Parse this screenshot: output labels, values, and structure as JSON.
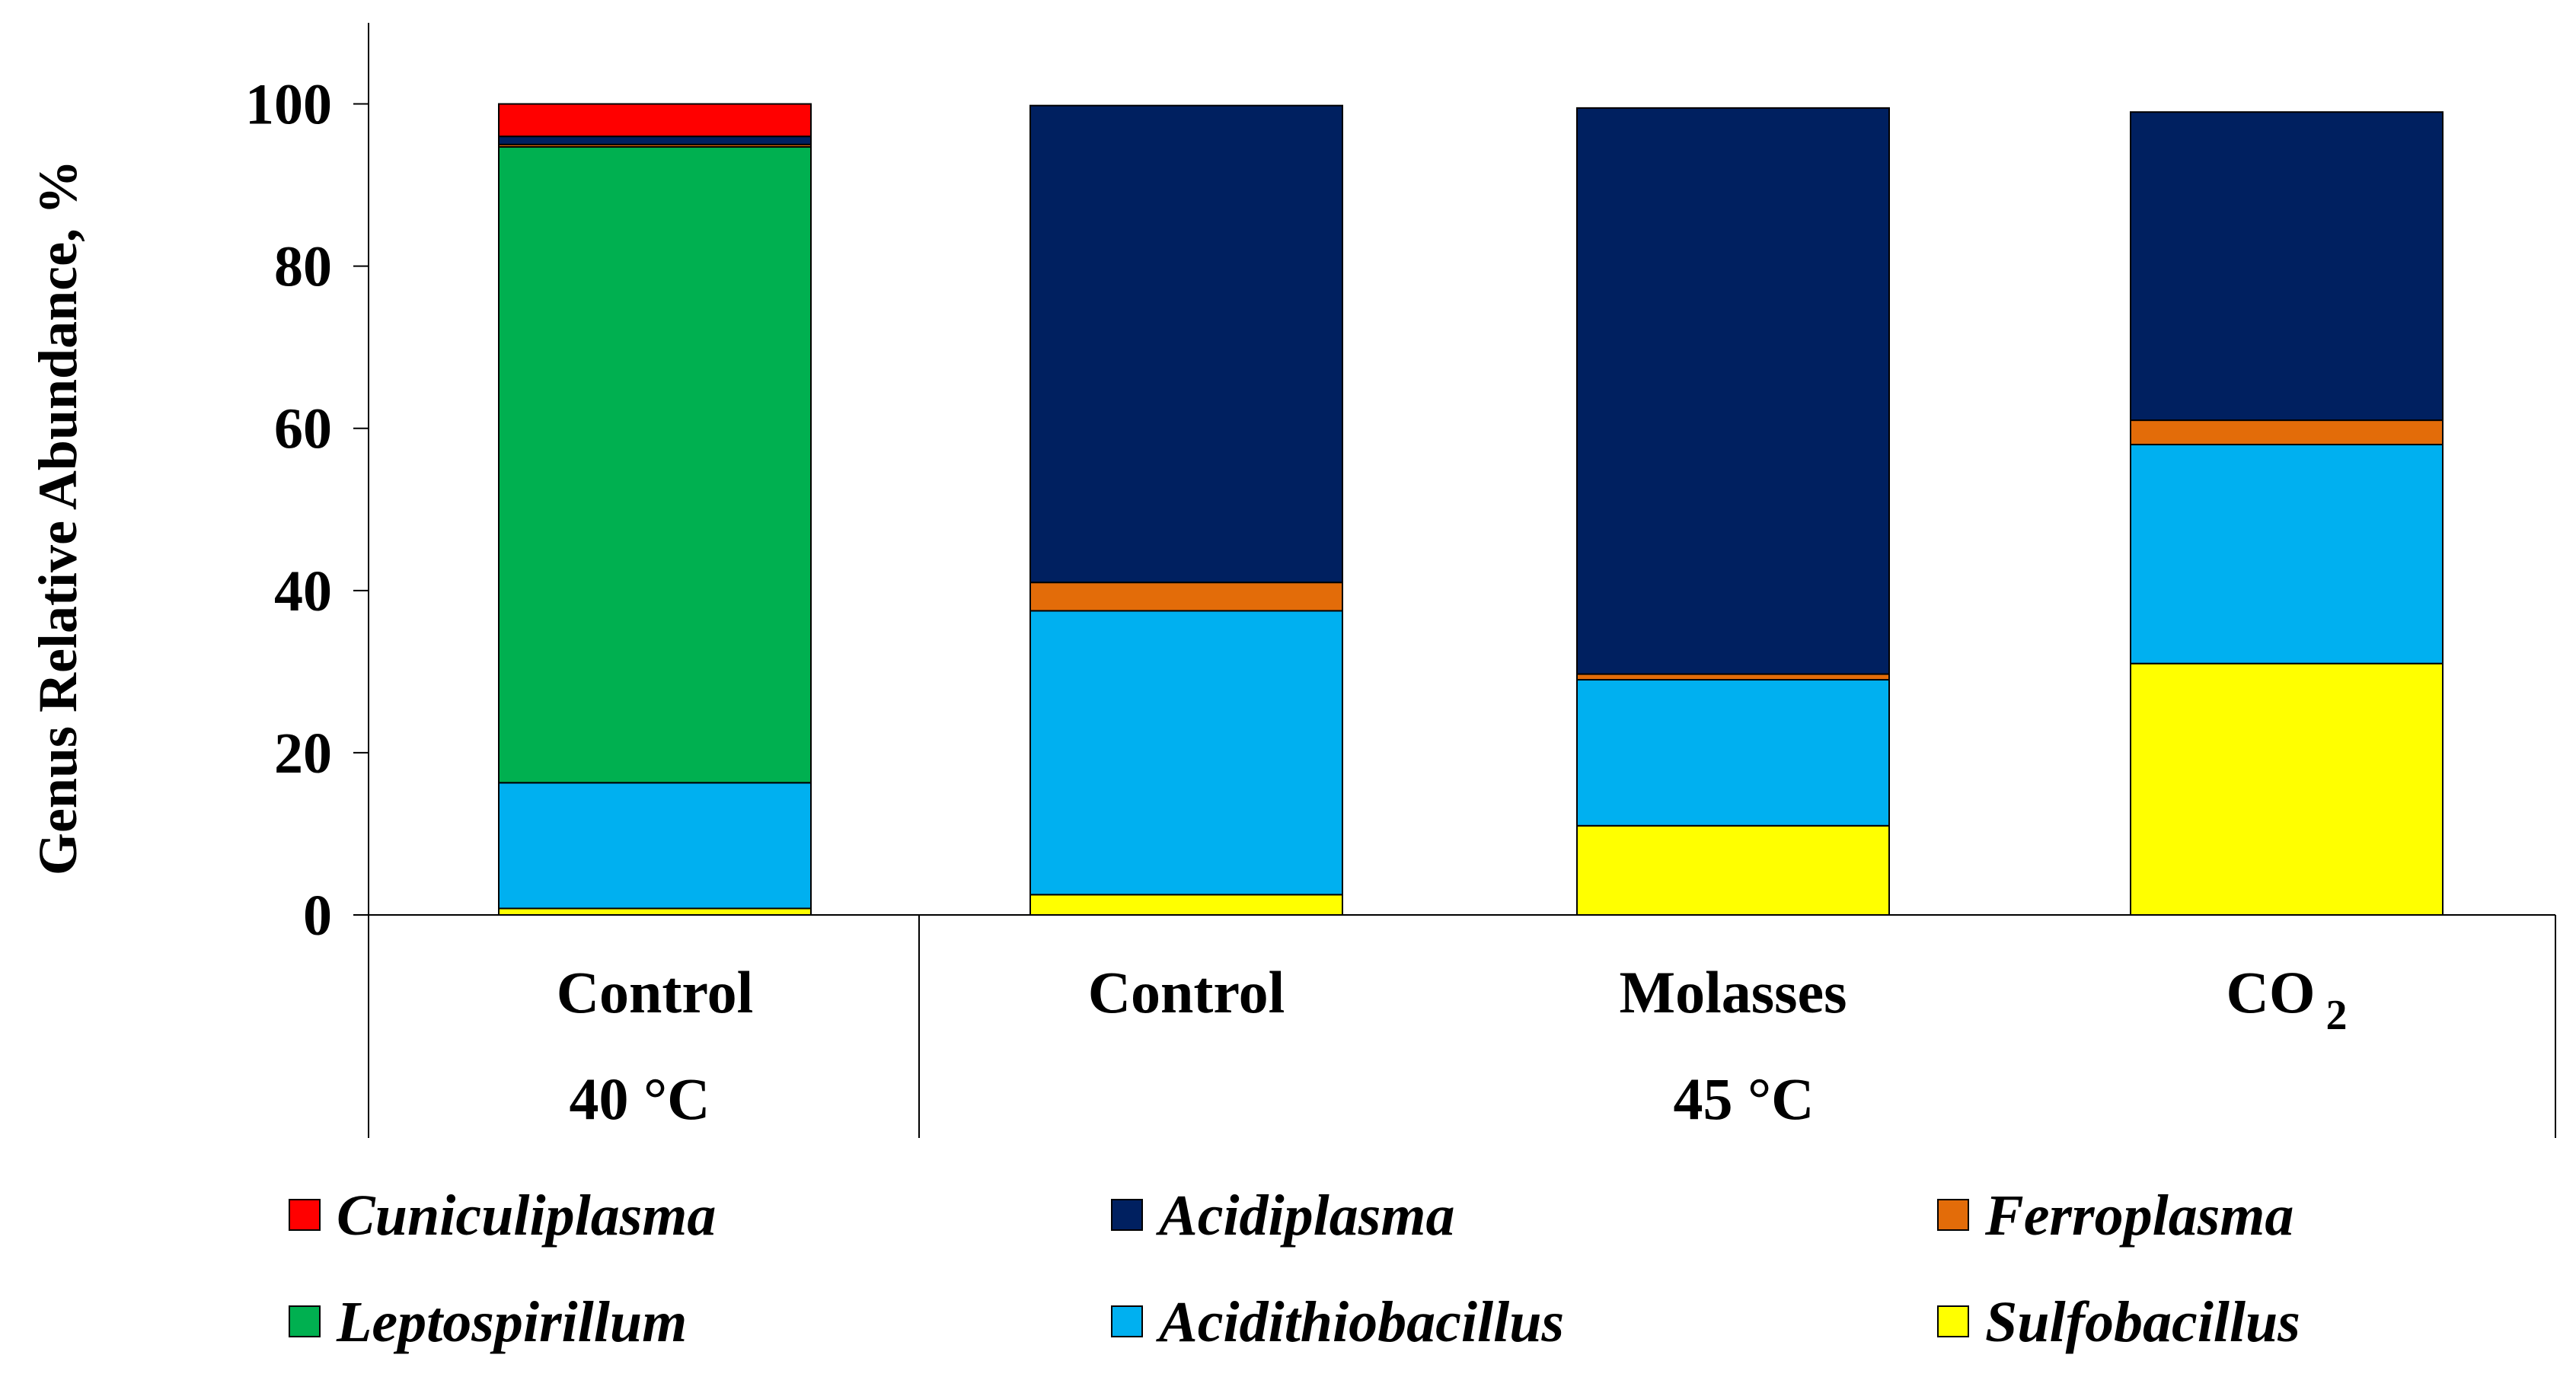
{
  "chart_data": {
    "type": "bar",
    "stacked": true,
    "title": "",
    "ylabel": "Genus Relative Abundance, %",
    "ylim": [
      0,
      110
    ],
    "yticks": [
      "0",
      "20",
      "40",
      "60",
      "80",
      "100"
    ],
    "categories": [
      {
        "label": "Control",
        "sub": ""
      },
      {
        "label": "Control",
        "sub": ""
      },
      {
        "label": "Molasses",
        "sub": ""
      },
      {
        "label": "CO",
        "sub": "2"
      }
    ],
    "groups": [
      {
        "label": "40 °C",
        "span": [
          0,
          0
        ]
      },
      {
        "label": "45 °C",
        "span": [
          1,
          3
        ]
      }
    ],
    "series": [
      {
        "name": "Sulfobacillus",
        "color": "#FFFF00",
        "values": [
          0.8,
          2.5,
          11.0,
          31.0
        ]
      },
      {
        "name": "Acidithiobacillus",
        "color": "#00B0F0",
        "values": [
          15.5,
          35.0,
          18.0,
          27.0
        ]
      },
      {
        "name": "Leptospirillum",
        "color": "#00B050",
        "values": [
          78.4,
          0.0,
          0.0,
          0.0
        ]
      },
      {
        "name": "Ferroplasma",
        "color": "#E36C09",
        "values": [
          0.3,
          3.5,
          0.7,
          3.0
        ]
      },
      {
        "name": "Acidiplasma",
        "color": "#002060",
        "values": [
          1.0,
          58.8,
          69.8,
          38.0
        ]
      },
      {
        "name": "Cuniculiplasma",
        "color": "#FF0000",
        "values": [
          4.0,
          0.0,
          0.0,
          0.0
        ]
      }
    ],
    "legend": {
      "placement": "bottom",
      "order": [
        "Cuniculiplasma",
        "Acidiplasma",
        "Ferroplasma",
        "Leptospirillum",
        "Acidithiobacillus",
        "Sulfobacillus"
      ]
    },
    "grid": false
  }
}
